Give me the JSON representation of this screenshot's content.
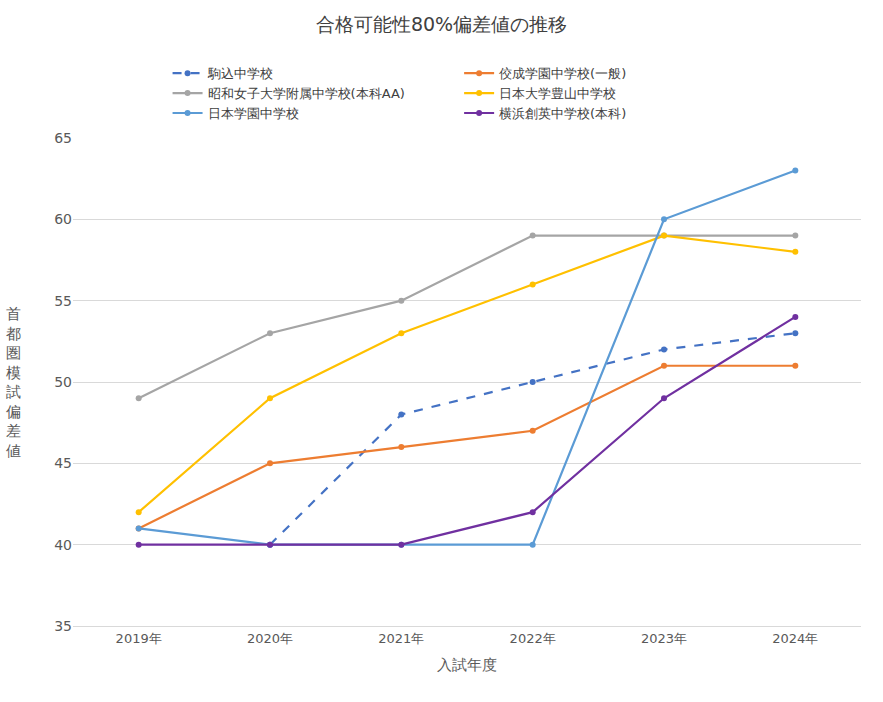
{
  "chart_data": {
    "type": "line",
    "title": "合格可能性80%偏差値の推移",
    "x_label": "入試年度",
    "y_label": "首都圏模試偏差値",
    "categories": [
      "2019年",
      "2020年",
      "2021年",
      "2022年",
      "2023年",
      "2024年"
    ],
    "series": [
      {
        "name": "駒込中学校",
        "color": "#4472c4",
        "line_style": "dashed",
        "values": [
          null,
          40,
          48,
          50,
          52,
          53
        ]
      },
      {
        "name": "佼成学園中学校(一般)",
        "color": "#ed7d31",
        "line_style": "solid",
        "values": [
          41,
          45,
          46,
          47,
          51,
          51
        ]
      },
      {
        "name": "昭和女子大学附属中学校(本科AA)",
        "color": "#a5a5a5",
        "line_style": "solid",
        "values": [
          49,
          53,
          55,
          59,
          59,
          59
        ]
      },
      {
        "name": "日本大学豊山中学校",
        "color": "#ffc000",
        "line_style": "solid",
        "values": [
          42,
          49,
          53,
          56,
          59,
          58
        ]
      },
      {
        "name": "日本学園中学校",
        "color": "#5b9bd5",
        "line_style": "solid",
        "values": [
          41,
          40,
          40,
          40,
          60,
          63
        ]
      },
      {
        "name": "横浜創英中学校(本科)",
        "color": "#7030a0",
        "line_style": "solid",
        "values": [
          40,
          40,
          40,
          42,
          49,
          54
        ]
      }
    ],
    "marker": "circle",
    "ylim": [
      35,
      65
    ],
    "yticks": [
      35,
      40,
      45,
      50,
      55,
      60,
      65
    ],
    "grid": true,
    "legend": "top"
  }
}
